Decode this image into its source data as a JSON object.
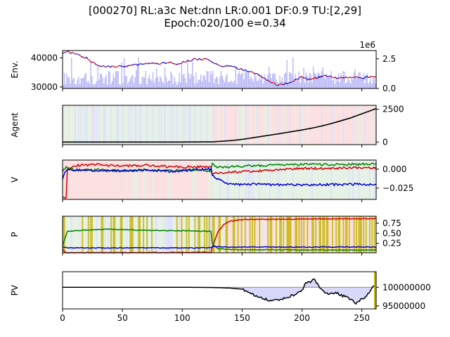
{
  "chart_data": {
    "title_line1": "[000270] RL:a3c Net:dnn LR:0.001 DF:0.9 TU:[2,29]",
    "title_line2": "Epoch:020/100 e=0.34",
    "shared_x": {
      "ticks": [
        0,
        50,
        100,
        150,
        200,
        250
      ],
      "labels": [
        "0",
        "50",
        "100",
        "150",
        "200",
        "250"
      ],
      "xlim": [
        0,
        262
      ]
    },
    "panels": [
      {
        "id": "env",
        "ylabel": "Env.",
        "type": "line+bar",
        "ylim": [
          29500,
          42500
        ],
        "yticks_left": [
          30000,
          40000
        ],
        "ytick_labels_left": [
          "30000",
          "40000"
        ],
        "right_axis": {
          "ylim": [
            0,
            3.2
          ],
          "ticks": [
            0,
            2.5
          ],
          "labels": [
            "0.0",
            "2.5"
          ],
          "offset_label": "1e6"
        },
        "price_points": [
          [
            0,
            41500
          ],
          [
            4,
            42000
          ],
          [
            10,
            41500
          ],
          [
            15,
            40500
          ],
          [
            20,
            40000
          ],
          [
            22,
            39000
          ],
          [
            25,
            38500
          ],
          [
            30,
            37500
          ],
          [
            35,
            37000
          ],
          [
            40,
            37000
          ],
          [
            50,
            37000
          ],
          [
            60,
            37500
          ],
          [
            70,
            38000
          ],
          [
            80,
            38000
          ],
          [
            90,
            38500
          ],
          [
            95,
            37500
          ],
          [
            100,
            38500
          ],
          [
            110,
            39500
          ],
          [
            120,
            39500
          ],
          [
            125,
            38500
          ],
          [
            130,
            37500
          ],
          [
            140,
            37000
          ],
          [
            150,
            36000
          ],
          [
            160,
            35000
          ],
          [
            165,
            34000
          ],
          [
            170,
            32500
          ],
          [
            175,
            31500
          ],
          [
            180,
            30500
          ],
          [
            185,
            31000
          ],
          [
            190,
            31500
          ],
          [
            200,
            33500
          ],
          [
            205,
            32500
          ],
          [
            210,
            33000
          ],
          [
            220,
            34000
          ],
          [
            230,
            33000
          ],
          [
            240,
            33500
          ],
          [
            250,
            33000
          ],
          [
            255,
            33500
          ],
          [
            262,
            33500
          ]
        ],
        "volume_scale": "1e6"
      },
      {
        "id": "agent",
        "ylabel": "Agent",
        "type": "line",
        "ylim": [
          -200,
          2800
        ],
        "yticks_right": [
          0,
          2500
        ],
        "ytick_labels_right": [
          "0",
          "2500"
        ],
        "line_points": [
          [
            0,
            0
          ],
          [
            100,
            0
          ],
          [
            125,
            10
          ],
          [
            130,
            40
          ],
          [
            140,
            100
          ],
          [
            150,
            200
          ],
          [
            160,
            340
          ],
          [
            170,
            480
          ],
          [
            180,
            620
          ],
          [
            190,
            770
          ],
          [
            200,
            920
          ],
          [
            210,
            1090
          ],
          [
            220,
            1300
          ],
          [
            230,
            1550
          ],
          [
            240,
            1820
          ],
          [
            250,
            2150
          ],
          [
            262,
            2550
          ]
        ]
      },
      {
        "id": "v",
        "ylabel": "V",
        "type": "multi-line",
        "ylim": [
          -0.04,
          0.012
        ],
        "yticks_right": [
          0.0,
          -0.025
        ],
        "ytick_labels_right": [
          "0.000",
          "−0.025"
        ],
        "series": [
          {
            "name": "red",
            "color": "#d00000",
            "points": [
              [
                0,
                -0.038
              ],
              [
                3,
                -0.038
              ],
              [
                4,
                0.0
              ],
              [
                10,
                0.005
              ],
              [
                30,
                0.006
              ],
              [
                50,
                0.004
              ],
              [
                70,
                0.005
              ],
              [
                90,
                0.003
              ],
              [
                110,
                0.003
              ],
              [
                124,
                0.003
              ],
              [
                125,
                -0.006
              ],
              [
                140,
                -0.004
              ],
              [
                160,
                -0.003
              ],
              [
                180,
                -0.001
              ],
              [
                200,
                0.001
              ],
              [
                220,
                0.001
              ],
              [
                240,
                0.002
              ],
              [
                262,
                0.002
              ]
            ]
          },
          {
            "name": "green",
            "color": "#008000",
            "points": [
              [
                0,
                -0.002
              ],
              [
                3,
                0.003
              ],
              [
                10,
                -0.001
              ],
              [
                30,
                -0.001
              ],
              [
                50,
                -0.002
              ],
              [
                70,
                -0.001
              ],
              [
                90,
                -0.002
              ],
              [
                110,
                -0.001
              ],
              [
                124,
                -0.002
              ],
              [
                125,
                0.008
              ],
              [
                130,
                0.002
              ],
              [
                150,
                0.004
              ],
              [
                170,
                0.005
              ],
              [
                200,
                0.006
              ],
              [
                230,
                0.006
              ],
              [
                262,
                0.007
              ]
            ]
          },
          {
            "name": "blue",
            "color": "#0000cc",
            "points": [
              [
                0,
                -0.012
              ],
              [
                3,
                -0.002
              ],
              [
                10,
                -0.001
              ],
              [
                30,
                -0.002
              ],
              [
                50,
                -0.002
              ],
              [
                70,
                -0.001
              ],
              [
                90,
                -0.003
              ],
              [
                110,
                -0.001
              ],
              [
                124,
                0.0
              ],
              [
                125,
                -0.008
              ],
              [
                135,
                -0.018
              ],
              [
                140,
                -0.02
              ],
              [
                160,
                -0.02
              ],
              [
                200,
                -0.021
              ],
              [
                240,
                -0.02
              ],
              [
                262,
                -0.02
              ]
            ]
          }
        ]
      },
      {
        "id": "p",
        "ylabel": "P",
        "type": "multi-line",
        "ylim": [
          0.02,
          0.92
        ],
        "yticks_right": [
          0.25,
          0.5,
          0.75
        ],
        "ytick_labels_right": [
          "0.25",
          "0.50",
          "0.75"
        ],
        "series": [
          {
            "name": "red",
            "color": "#d00000",
            "points": [
              [
                0,
                0.1
              ],
              [
                3,
                0.02
              ],
              [
                124,
                0.03
              ],
              [
                125,
                0.15
              ],
              [
                130,
                0.55
              ],
              [
                135,
                0.72
              ],
              [
                140,
                0.8
              ],
              [
                150,
                0.84
              ],
              [
                200,
                0.85
              ],
              [
                262,
                0.86
              ]
            ]
          },
          {
            "name": "green",
            "color": "#008000",
            "points": [
              [
                0,
                0.2
              ],
              [
                4,
                0.55
              ],
              [
                20,
                0.58
              ],
              [
                40,
                0.6
              ],
              [
                60,
                0.58
              ],
              [
                80,
                0.57
              ],
              [
                100,
                0.56
              ],
              [
                124,
                0.55
              ],
              [
                125,
                0.25
              ],
              [
                130,
                0.12
              ],
              [
                140,
                0.1
              ],
              [
                200,
                0.09
              ],
              [
                262,
                0.09
              ]
            ]
          },
          {
            "name": "blue",
            "color": "#0000cc",
            "points": [
              [
                0,
                0.16
              ],
              [
                4,
                0.14
              ],
              [
                124,
                0.14
              ],
              [
                125,
                0.17
              ],
              [
                140,
                0.16
              ],
              [
                200,
                0.16
              ],
              [
                262,
                0.16
              ]
            ]
          }
        ]
      },
      {
        "id": "pv",
        "ylabel": "PV",
        "type": "line+fill",
        "ylim": [
          94200000,
          104200000
        ],
        "baseline": 100000000,
        "yticks_right": [
          95000000,
          100000000
        ],
        "ytick_labels_right": [
          "95000000",
          "100000000"
        ],
        "line_points": [
          [
            0,
            100000000
          ],
          [
            100,
            100000000
          ],
          [
            125,
            99950000
          ],
          [
            140,
            99800000
          ],
          [
            150,
            99500000
          ],
          [
            155,
            98700000
          ],
          [
            160,
            98000000
          ],
          [
            165,
            97200000
          ],
          [
            170,
            96800000
          ],
          [
            175,
            96400000
          ],
          [
            180,
            96700000
          ],
          [
            185,
            97000000
          ],
          [
            190,
            97600000
          ],
          [
            195,
            98200000
          ],
          [
            200,
            99000000
          ],
          [
            203,
            101000000
          ],
          [
            207,
            101500000
          ],
          [
            210,
            102500000
          ],
          [
            213,
            100800000
          ],
          [
            217,
            99200000
          ],
          [
            222,
            98200000
          ],
          [
            228,
            98700000
          ],
          [
            233,
            97800000
          ],
          [
            238,
            97300000
          ],
          [
            243,
            96200000
          ],
          [
            245,
            95500000
          ],
          [
            248,
            96400000
          ],
          [
            252,
            97200000
          ],
          [
            255,
            98300000
          ],
          [
            258,
            99500000
          ],
          [
            260,
            100500000
          ],
          [
            262,
            100000000
          ]
        ]
      }
    ]
  }
}
